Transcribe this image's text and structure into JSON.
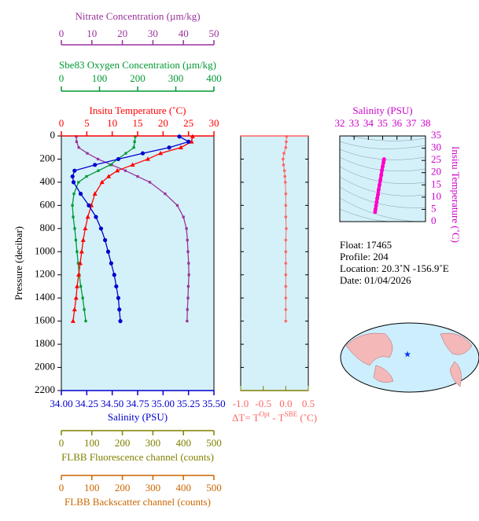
{
  "chart_data": [
    {
      "type": "profile",
      "ylabel": "Pressure (decibar)",
      "ylim": [
        0,
        2200
      ],
      "yticks": [
        0,
        200,
        400,
        600,
        800,
        1000,
        1200,
        1400,
        1600,
        1800,
        2000,
        2200
      ],
      "pressure": [
        5,
        50,
        100,
        150,
        200,
        250,
        300,
        350,
        400,
        500,
        600,
        700,
        800,
        900,
        1000,
        1100,
        1200,
        1300,
        1400,
        1500,
        1600
      ],
      "axes": [
        {
          "label": "Nitrate Concentration (µm/kg)",
          "color": "#993399",
          "xlim": [
            0,
            50
          ],
          "xticks": [
            0,
            10,
            20,
            30,
            40,
            50
          ],
          "marker": "square",
          "values": [
            4.9,
            5,
            5.7,
            8.5,
            12,
            16.5,
            21,
            25,
            29,
            34,
            38,
            40,
            41,
            41.3,
            41.5,
            41.7,
            41.8,
            41.6,
            41.5,
            41.3,
            41.2
          ]
        },
        {
          "label": "Sbe83 Oxygen Concentration (µm/kg)",
          "color": "#009933",
          "xlim": [
            0,
            400
          ],
          "xticks": [
            0,
            100,
            200,
            300,
            400
          ],
          "marker": "square",
          "values": [
            194,
            192,
            190,
            169,
            148,
            128,
            97,
            66,
            45,
            33,
            29,
            31,
            35,
            38,
            41,
            44,
            47,
            51,
            56,
            60,
            64
          ]
        },
        {
          "label": "Insitu Temperature (˚C)",
          "color": "#ff0000",
          "xlim": [
            0,
            30
          ],
          "xticks": [
            0,
            5,
            10,
            15,
            20,
            25,
            30
          ],
          "marker": "triangle",
          "values": [
            25.8,
            25.6,
            23.5,
            19.5,
            17,
            14,
            11,
            9.3,
            8,
            6.6,
            5.9,
            5.2,
            4.7,
            4.3,
            4,
            3.7,
            3.4,
            3.1,
            2.9,
            2.6,
            2.3
          ]
        },
        {
          "label": "Salinity (PSU)",
          "color": "#0000cc",
          "xlim": [
            34,
            35.5
          ],
          "xticks": [
            {
              "value": 34,
              "label": "34.00"
            },
            {
              "value": 34.25,
              "label": "34.25"
            },
            {
              "value": 34.5,
              "label": "34.50"
            },
            {
              "value": 34.75,
              "label": "34.75"
            },
            {
              "value": 35,
              "label": "35.00"
            },
            {
              "value": 35.25,
              "label": "35.25"
            },
            {
              "value": 35.5,
              "label": "35.50"
            }
          ],
          "marker": "circle",
          "values": [
            35.16,
            35.25,
            35.06,
            34.8,
            34.56,
            34.33,
            34.13,
            34.11,
            34.12,
            34.19,
            34.27,
            34.34,
            34.39,
            34.43,
            34.46,
            34.49,
            34.52,
            34.54,
            34.56,
            34.57,
            34.58
          ]
        },
        {
          "label": "FLBB Fluorescence channel (counts)",
          "color": "#808000",
          "xlim": [
            0,
            500
          ],
          "xticks": [
            0,
            100,
            200,
            300,
            400,
            500
          ]
        },
        {
          "label": "FLBB Backscatter channel (counts)",
          "color": "#cc6600",
          "xlim": [
            0,
            500
          ],
          "xticks": [
            0,
            100,
            200,
            300,
            400,
            500
          ]
        }
      ]
    },
    {
      "type": "delta",
      "color": "#ff6666",
      "xlabel": [
        "ΔT= T",
        "Opt",
        " - T",
        "SBE",
        " (˚C)"
      ],
      "xlim": [
        -1,
        0.5
      ],
      "xticks": [
        {
          "value": -1,
          "label": "-1.0"
        },
        {
          "value": -0.5,
          "label": "-0.5"
        },
        {
          "value": 0,
          "label": "0.0"
        },
        0.5
      ],
      "values": [
        0.02,
        0.01,
        0,
        -0.04,
        -0.06,
        -0.05,
        -0.03,
        -0.02,
        -0.01,
        0,
        0,
        0,
        0.01,
        0,
        0,
        0,
        0,
        0,
        0,
        0,
        0
      ]
    },
    {
      "type": "ts",
      "color": "#ff00cc",
      "title": "Salinity (PSU)",
      "ylabel": "Insitu Temperature (˚C)",
      "xlim": [
        32,
        38
      ],
      "xticks": [
        32,
        33,
        34,
        35,
        36,
        37,
        38
      ],
      "ylim": [
        0,
        35
      ],
      "yticks": [
        0,
        5,
        10,
        15,
        20,
        25,
        30,
        35
      ],
      "x": [
        34.47,
        34.5,
        34.54,
        34.58,
        34.62,
        34.67,
        34.72,
        34.78,
        34.84,
        34.9,
        34.95,
        35.0,
        35.05,
        35.08,
        35.1
      ],
      "y": [
        3.9,
        5,
        6.5,
        8,
        9.5,
        11,
        13,
        15,
        17,
        19,
        21,
        22.5,
        24,
        25,
        25.5
      ]
    }
  ],
  "info": [
    "Float:  17465",
    "Profile:  204",
    "Location:  20.3˚N  -156.9˚E",
    "Date:  01/04/2026"
  ]
}
